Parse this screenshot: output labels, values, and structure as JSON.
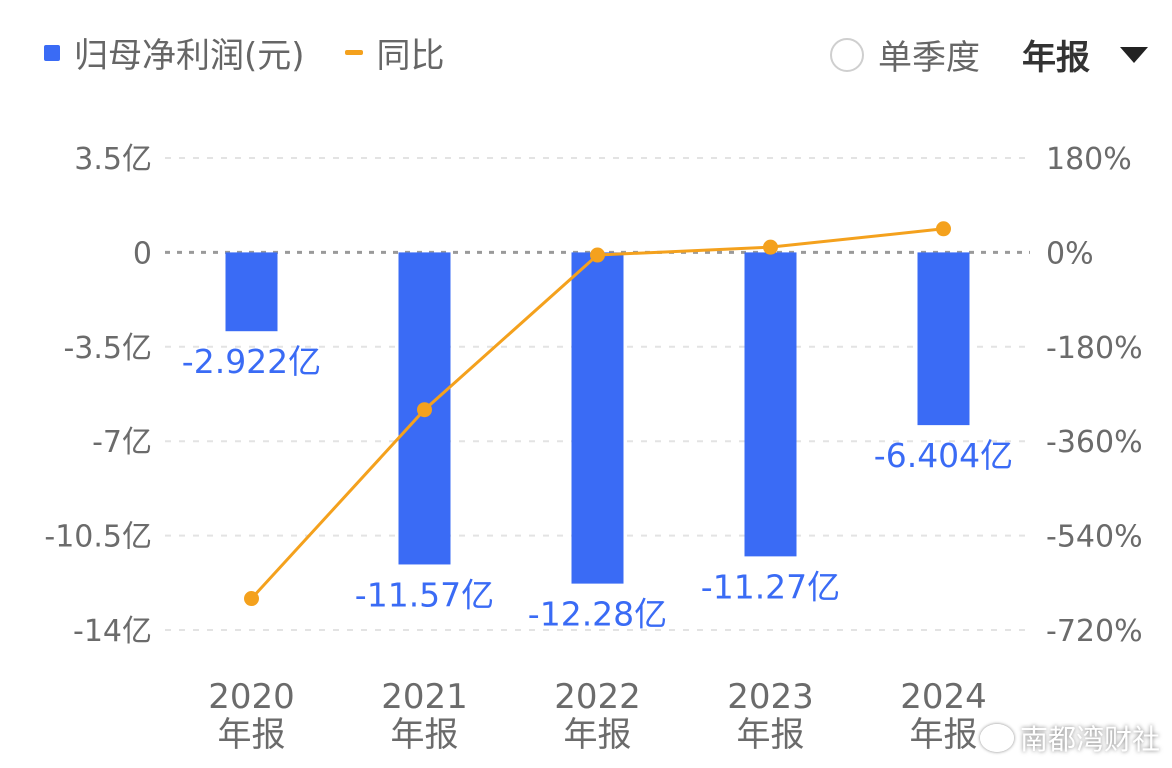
{
  "legend": {
    "bar_label": "归母净利润(元)",
    "line_label": "同比"
  },
  "controls": {
    "quarterly_label": "单季度",
    "annual_label": "年报"
  },
  "watermark": "南都湾财社",
  "colors": {
    "bar": "#3A6BF5",
    "line": "#F4A11D",
    "grid": "#e3e3e3",
    "zero_line": "#9a9a9a",
    "tick_text": "#6b6b6b",
    "value_label": "#3A6BF5"
  },
  "chart_data": {
    "type": "bar",
    "categories": [
      "2020\n年报",
      "2021\n年报",
      "2022\n年报",
      "2023\n年报",
      "2024\n年报"
    ],
    "series": [
      {
        "name": "归母净利润(元)",
        "type": "bar",
        "axis": "left",
        "values": [
          -2.922,
          -11.57,
          -12.28,
          -11.27,
          -6.404
        ],
        "labels": [
          "-2.922亿",
          "-11.57亿",
          "-12.28亿",
          "-11.27亿",
          "-6.404亿"
        ]
      },
      {
        "name": "同比",
        "type": "line",
        "axis": "right",
        "values": [
          -660,
          -300,
          -5,
          10,
          45
        ]
      }
    ],
    "left_axis": {
      "ylim": [
        -14,
        3.5
      ],
      "ticks": [
        3.5,
        0,
        -3.5,
        -7,
        -10.5,
        -14
      ],
      "tick_labels": [
        "3.5亿",
        "0",
        "-3.5亿",
        "-7亿",
        "-10.5亿",
        "-14亿"
      ]
    },
    "right_axis": {
      "ylim": [
        -720,
        180
      ],
      "ticks": [
        180,
        0,
        -180,
        -360,
        -540,
        -720
      ],
      "tick_labels": [
        "180%",
        "0%",
        "-180%",
        "-360%",
        "-540%",
        "-720%"
      ]
    },
    "grid": true,
    "legend_position": "top-left"
  }
}
